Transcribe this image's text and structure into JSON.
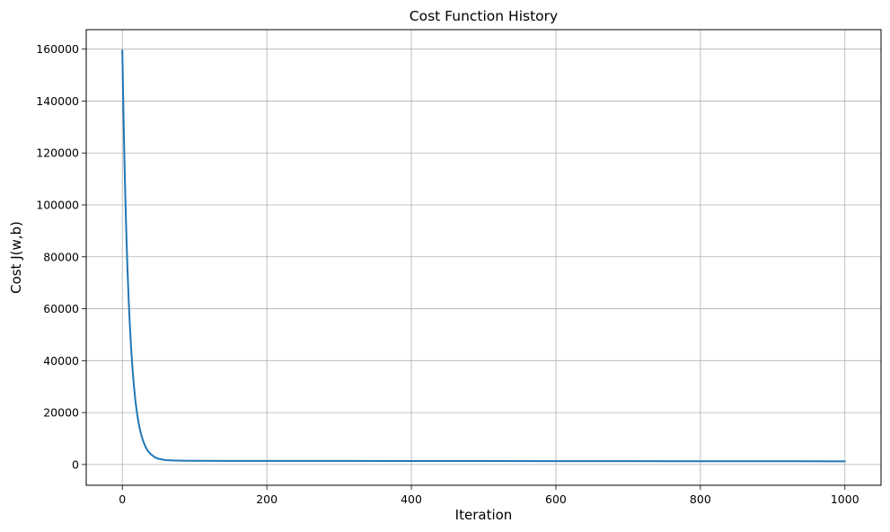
{
  "chart_data": {
    "type": "line",
    "title": "Cost Function History",
    "xlabel": "Iteration",
    "ylabel": "Cost J(w,b)",
    "xlim": [
      -50,
      1050
    ],
    "ylim": [
      -8000,
      167500
    ],
    "xticks": [
      0,
      200,
      400,
      600,
      800,
      1000
    ],
    "yticks": [
      0,
      20000,
      40000,
      60000,
      80000,
      100000,
      120000,
      140000,
      160000
    ],
    "grid": true,
    "series": [
      {
        "color": "#1f77b4",
        "x": [
          0,
          1,
          2,
          3,
          4,
          5,
          6,
          7,
          8,
          9,
          10,
          12,
          14,
          16,
          18,
          20,
          22,
          24,
          26,
          28,
          30,
          33,
          36,
          40,
          45,
          50,
          60,
          70,
          80,
          100,
          150,
          200,
          300,
          400,
          500,
          600,
          700,
          800,
          900,
          1000
        ],
        "y": [
          159500,
          143400,
          129000,
          116000,
          104400,
          94000,
          84700,
          76300,
          68800,
          62000,
          55900,
          45500,
          37100,
          30300,
          24800,
          20400,
          16800,
          13900,
          11600,
          9700,
          8200,
          6300,
          5000,
          3800,
          2800,
          2200,
          1700,
          1550,
          1480,
          1430,
          1400,
          1390,
          1370,
          1350,
          1330,
          1310,
          1290,
          1270,
          1250,
          1230
        ]
      }
    ]
  }
}
